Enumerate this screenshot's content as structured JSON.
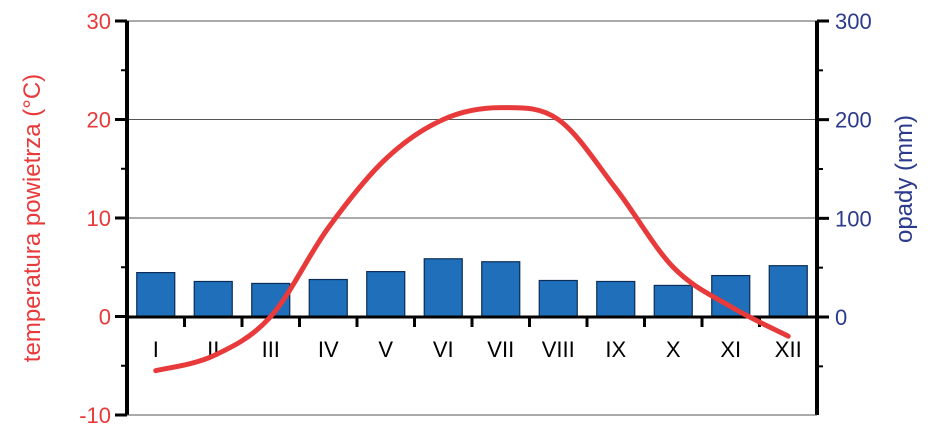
{
  "chart_data": {
    "type": "bar+line",
    "categories": [
      "I",
      "II",
      "III",
      "IV",
      "V",
      "VI",
      "VII",
      "VIII",
      "IX",
      "X",
      "XI",
      "XII"
    ],
    "series": [
      {
        "type": "bar",
        "axis": "right",
        "values": [
          45,
          36,
          34,
          38,
          46,
          59,
          56,
          37,
          36,
          32,
          42,
          52
        ],
        "color": "#1f6fba"
      },
      {
        "type": "line",
        "axis": "left",
        "values": [
          -5.5,
          -4,
          0,
          9,
          16,
          20,
          21.2,
          20,
          13,
          5,
          1,
          -2
        ],
        "color": "#e83a3a"
      }
    ],
    "left_axis": {
      "label": "temperatura powietrza (°C)",
      "ylim": [
        -10,
        30
      ],
      "ticks": [
        "30",
        "20",
        "10",
        "0",
        "-10"
      ],
      "color": "#e83a3a"
    },
    "right_axis": {
      "label": "opady (mm)",
      "ylim": [
        0,
        300
      ],
      "ticks": [
        "300",
        "200",
        "100",
        "0"
      ],
      "color": "#2b3a8c"
    },
    "grid": true
  }
}
